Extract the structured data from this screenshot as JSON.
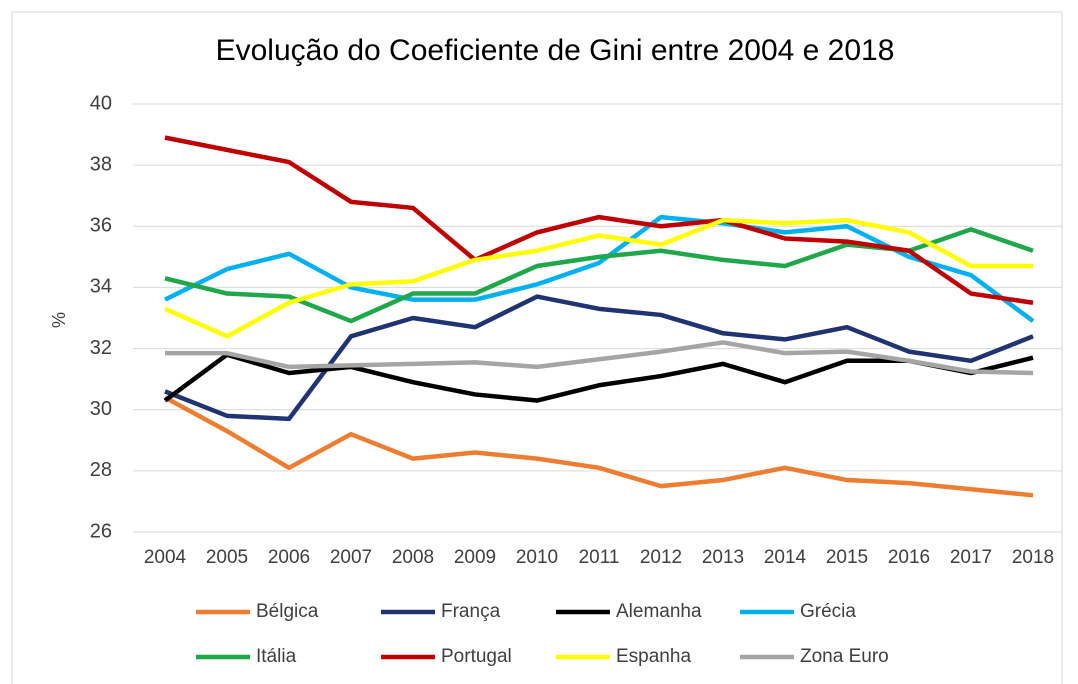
{
  "chart_data": {
    "type": "line",
    "title": "Evolução do Coeficiente de Gini entre 2004 e 2018",
    "y_label": "%",
    "categories": [
      "2004",
      "2005",
      "2006",
      "2007",
      "2008",
      "2009",
      "2010",
      "2011",
      "2012",
      "2013",
      "2014",
      "2015",
      "2016",
      "2017",
      "2018"
    ],
    "ylim": [
      26,
      40
    ],
    "yticks": [
      26,
      28,
      30,
      32,
      34,
      36,
      38,
      40
    ],
    "grid": true,
    "legend": "bottom",
    "series": [
      {
        "name": "Bélgica",
        "color": "#ed7d31",
        "values": [
          30.4,
          29.3,
          28.1,
          29.2,
          28.4,
          28.6,
          28.4,
          28.1,
          27.5,
          27.7,
          28.1,
          27.7,
          27.6,
          27.4,
          27.2
        ]
      },
      {
        "name": "França",
        "color": "#1f3470",
        "values": [
          30.6,
          29.8,
          29.7,
          32.4,
          33.0,
          32.7,
          33.7,
          33.3,
          33.1,
          32.5,
          32.3,
          32.7,
          31.9,
          31.6,
          32.4
        ]
      },
      {
        "name": "Alemanha",
        "color": "#000000",
        "values": [
          30.3,
          31.8,
          31.2,
          31.4,
          30.9,
          30.5,
          30.3,
          30.8,
          31.1,
          31.5,
          30.9,
          31.6,
          31.6,
          31.2,
          31.7
        ]
      },
      {
        "name": "Grécia",
        "color": "#00b0f0",
        "values": [
          33.6,
          34.6,
          35.1,
          34.0,
          33.6,
          33.6,
          34.1,
          34.8,
          36.3,
          36.1,
          35.8,
          36.0,
          35.0,
          34.4,
          32.9
        ]
      },
      {
        "name": "Itália",
        "color": "#1ea84a",
        "values": [
          34.3,
          33.8,
          33.7,
          32.9,
          33.8,
          33.8,
          34.7,
          35.0,
          35.2,
          34.9,
          34.7,
          35.4,
          35.2,
          35.9,
          35.2
        ]
      },
      {
        "name": "Portugal",
        "color": "#c00000",
        "values": [
          38.9,
          38.5,
          38.1,
          36.8,
          36.6,
          34.9,
          35.8,
          36.3,
          36.0,
          36.2,
          35.6,
          35.5,
          35.2,
          33.8,
          33.5
        ]
      },
      {
        "name": "Espanha",
        "color": "#ffff00",
        "values": [
          33.3,
          32.4,
          33.5,
          34.1,
          34.2,
          34.9,
          35.2,
          35.7,
          35.4,
          36.2,
          36.1,
          36.2,
          35.8,
          34.7,
          34.7
        ]
      },
      {
        "name": "Zona Euro",
        "color": "#a5a5a5",
        "values": [
          31.85,
          31.85,
          31.4,
          31.45,
          31.5,
          31.55,
          31.4,
          31.65,
          31.9,
          32.2,
          31.85,
          31.9,
          31.6,
          31.25,
          31.2
        ]
      }
    ]
  }
}
